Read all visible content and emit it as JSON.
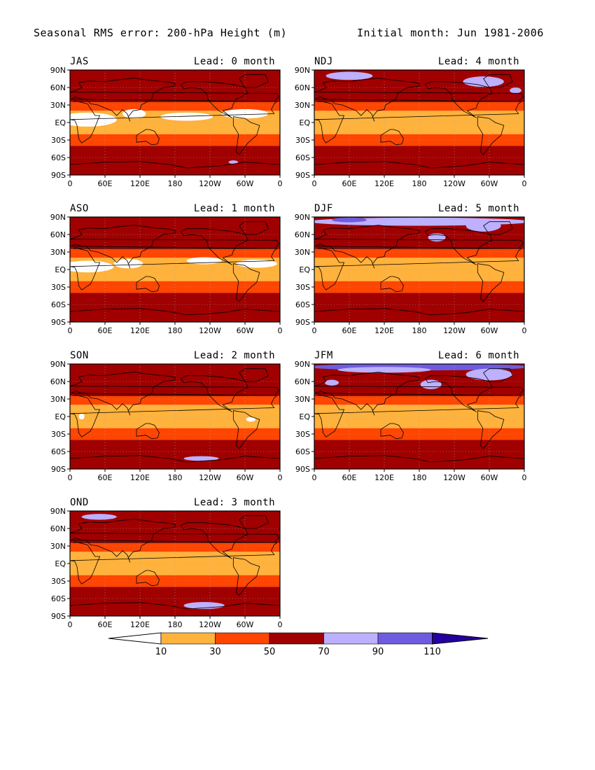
{
  "title_left": "Seasonal RMS error: 200-hPa Height (m)",
  "title_right": "Initial month: Jun 1981-2006",
  "chart_data": [
    {
      "type": "heatmap",
      "season": "JAS",
      "lead": "Lead: 0 month",
      "x_ticks": [
        "0",
        "60E",
        "120E",
        "180",
        "120W",
        "60W",
        "0"
      ],
      "y_ticks": [
        "90N",
        "60N",
        "30N",
        "EQ",
        "30S",
        "60S",
        "90S"
      ],
      "blobs": [
        {
          "lon": 30,
          "lat": 5,
          "rx": 50,
          "ry": 12,
          "v": 5
        },
        {
          "lon": 110,
          "lat": 15,
          "rx": 20,
          "ry": 8,
          "v": 5
        },
        {
          "lon": 200,
          "lat": 10,
          "rx": 45,
          "ry": 7,
          "v": 5
        },
        {
          "lon": 300,
          "lat": 15,
          "rx": 40,
          "ry": 8,
          "v": 5
        },
        {
          "lon": 180,
          "lat": -75,
          "rx": 170,
          "ry": 12,
          "v": 55
        },
        {
          "lon": 280,
          "lat": -68,
          "rx": 8,
          "ry": 3,
          "v": 75
        },
        {
          "lon": 200,
          "lat": 68,
          "rx": 30,
          "ry": 8,
          "v": 55
        },
        {
          "lon": 80,
          "lat": 62,
          "rx": 25,
          "ry": 7,
          "v": 55
        }
      ]
    },
    {
      "type": "heatmap",
      "season": "NDJ",
      "lead": "Lead: 4 month",
      "x_ticks": [
        "0",
        "60E",
        "120E",
        "180",
        "120W",
        "60W",
        "0"
      ],
      "y_ticks": [
        "90N",
        "60N",
        "30N",
        "EQ",
        "30S",
        "60S",
        "90S"
      ],
      "blobs": [
        {
          "lon": 180,
          "lat": 55,
          "rx": 190,
          "ry": 18,
          "v": 55
        },
        {
          "lon": 60,
          "lat": 80,
          "rx": 40,
          "ry": 7,
          "v": 75
        },
        {
          "lon": 290,
          "lat": 70,
          "rx": 35,
          "ry": 9,
          "v": 75
        },
        {
          "lon": 345,
          "lat": 55,
          "rx": 10,
          "ry": 5,
          "v": 75
        },
        {
          "lon": 180,
          "lat": -75,
          "rx": 170,
          "ry": 12,
          "v": 55
        },
        {
          "lon": 150,
          "lat": 52,
          "rx": 25,
          "ry": 6,
          "v": 55
        }
      ]
    },
    {
      "type": "heatmap",
      "season": "ASO",
      "lead": "Lead: 1 month",
      "x_ticks": [
        "0",
        "60E",
        "120E",
        "180",
        "120W",
        "60W",
        "0"
      ],
      "y_ticks": [
        "90N",
        "60N",
        "30N",
        "EQ",
        "30S",
        "60S",
        "90S"
      ],
      "blobs": [
        {
          "lon": 30,
          "lat": 5,
          "rx": 45,
          "ry": 10,
          "v": 5
        },
        {
          "lon": 100,
          "lat": 10,
          "rx": 25,
          "ry": 8,
          "v": 5
        },
        {
          "lon": 230,
          "lat": 15,
          "rx": 30,
          "ry": 6,
          "v": 5
        },
        {
          "lon": 320,
          "lat": 10,
          "rx": 35,
          "ry": 7,
          "v": 5
        },
        {
          "lon": 180,
          "lat": -75,
          "rx": 170,
          "ry": 11,
          "v": 55
        },
        {
          "lon": 200,
          "lat": 65,
          "rx": 35,
          "ry": 8,
          "v": 55
        },
        {
          "lon": 80,
          "lat": 62,
          "rx": 30,
          "ry": 8,
          "v": 55
        }
      ]
    },
    {
      "type": "heatmap",
      "season": "DJF",
      "lead": "Lead: 5 month",
      "x_ticks": [
        "0",
        "60E",
        "120E",
        "180",
        "120W",
        "60W",
        "0"
      ],
      "y_ticks": [
        "90N",
        "60N",
        "30N",
        "EQ",
        "30S",
        "60S",
        "90S"
      ],
      "blobs": [
        {
          "lon": 180,
          "lat": 58,
          "rx": 190,
          "ry": 18,
          "v": 55
        },
        {
          "lon": 180,
          "lat": 82,
          "rx": 190,
          "ry": 7,
          "v": 75
        },
        {
          "lon": 60,
          "lat": 85,
          "rx": 30,
          "ry": 4,
          "v": 95
        },
        {
          "lon": 290,
          "lat": 75,
          "rx": 30,
          "ry": 10,
          "v": 80
        },
        {
          "lon": 210,
          "lat": 55,
          "rx": 15,
          "ry": 7,
          "v": 75
        },
        {
          "lon": 180,
          "lat": -75,
          "rx": 170,
          "ry": 11,
          "v": 55
        },
        {
          "lon": 120,
          "lat": 50,
          "rx": 30,
          "ry": 6,
          "v": 55
        }
      ]
    },
    {
      "type": "heatmap",
      "season": "SON",
      "lead": "Lead: 2 month",
      "x_ticks": [
        "0",
        "60E",
        "120E",
        "180",
        "120W",
        "60W",
        "0"
      ],
      "y_ticks": [
        "90N",
        "60N",
        "30N",
        "EQ",
        "30S",
        "60S",
        "90S"
      ],
      "blobs": [
        {
          "lon": 180,
          "lat": 75,
          "rx": 190,
          "ry": 15,
          "v": 55
        },
        {
          "lon": 180,
          "lat": -75,
          "rx": 170,
          "ry": 12,
          "v": 55
        },
        {
          "lon": 225,
          "lat": -72,
          "rx": 30,
          "ry": 4,
          "v": 75
        },
        {
          "lon": 20,
          "lat": 0,
          "rx": 5,
          "ry": 5,
          "v": 5
        },
        {
          "lon": 310,
          "lat": -5,
          "rx": 8,
          "ry": 4,
          "v": 5
        }
      ]
    },
    {
      "type": "heatmap",
      "season": "JFM",
      "lead": "Lead: 6 month",
      "x_ticks": [
        "0",
        "60E",
        "120E",
        "180",
        "120W",
        "60W",
        "0"
      ],
      "y_ticks": [
        "90N",
        "60N",
        "30N",
        "EQ",
        "30S",
        "60S",
        "90S"
      ],
      "blobs": [
        {
          "lon": 180,
          "lat": 58,
          "rx": 190,
          "ry": 18,
          "v": 55
        },
        {
          "lon": 180,
          "lat": 85,
          "rx": 190,
          "ry": 6,
          "v": 95
        },
        {
          "lon": 120,
          "lat": 80,
          "rx": 80,
          "ry": 5,
          "v": 75
        },
        {
          "lon": 300,
          "lat": 72,
          "rx": 40,
          "ry": 10,
          "v": 80
        },
        {
          "lon": 200,
          "lat": 55,
          "rx": 18,
          "ry": 8,
          "v": 75
        },
        {
          "lon": 30,
          "lat": 58,
          "rx": 12,
          "ry": 5,
          "v": 75
        },
        {
          "lon": 180,
          "lat": -75,
          "rx": 170,
          "ry": 10,
          "v": 55
        }
      ]
    },
    {
      "type": "heatmap",
      "season": "OND",
      "lead": "Lead: 3 month",
      "x_ticks": [
        "0",
        "60E",
        "120E",
        "180",
        "120W",
        "60W",
        "0"
      ],
      "y_ticks": [
        "90N",
        "60N",
        "30N",
        "EQ",
        "30S",
        "60S",
        "90S"
      ],
      "blobs": [
        {
          "lon": 180,
          "lat": 65,
          "rx": 190,
          "ry": 18,
          "v": 55
        },
        {
          "lon": 50,
          "lat": 80,
          "rx": 30,
          "ry": 5,
          "v": 75
        },
        {
          "lon": 180,
          "lat": -72,
          "rx": 170,
          "ry": 12,
          "v": 55
        },
        {
          "lon": 230,
          "lat": -72,
          "rx": 35,
          "ry": 6,
          "v": 75
        },
        {
          "lon": 230,
          "lat": -70,
          "rx": 18,
          "ry": 3,
          "v": 85
        }
      ]
    }
  ],
  "colorbar": {
    "levels": [
      "10",
      "30",
      "50",
      "70",
      "90",
      "110"
    ],
    "colors": [
      "#ffffff",
      "#ffb23c",
      "#ff4500",
      "#a00000",
      "#bcb0ff",
      "#6e5ce0",
      "#2400a0"
    ]
  },
  "map_colors": {
    "default_band_values": {
      "polar": 50,
      "mid": 35,
      "tropic": 20
    },
    "land_outline": "#000000",
    "grid": "#aaaaaa"
  }
}
